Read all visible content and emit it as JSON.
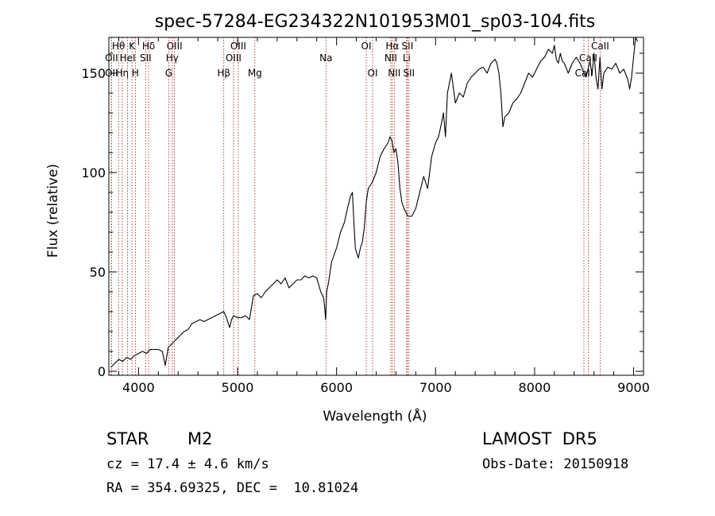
{
  "chart_data": {
    "type": "line",
    "title": "spec-57284-EG234322N101953M01_sp03-104.fits",
    "xlabel": "Wavelength (Å)",
    "ylabel": "Flux (relative)",
    "xlim": [
      3700,
      9100
    ],
    "ylim": [
      -2,
      168
    ],
    "xticks": [
      4000,
      5000,
      6000,
      7000,
      8000,
      9000
    ],
    "yticks": [
      0,
      50,
      100,
      150
    ],
    "grid": false,
    "line_color": "#000000",
    "marker_color": "#b01010",
    "series": [
      {
        "x": [
          3720,
          3760,
          3800,
          3840,
          3880,
          3920,
          3960,
          4000,
          4040,
          4080,
          4120,
          4160,
          4200,
          4240,
          4270,
          4300,
          4340,
          4380,
          4420,
          4460,
          4500,
          4540,
          4580,
          4620,
          4660,
          4700,
          4740,
          4780,
          4820,
          4860,
          4880,
          4900,
          4920,
          4940,
          4960,
          5000,
          5040,
          5080,
          5120,
          5160,
          5200,
          5240,
          5280,
          5320,
          5360,
          5400,
          5440,
          5480,
          5520,
          5560,
          5600,
          5640,
          5680,
          5720,
          5760,
          5800,
          5840,
          5870,
          5880,
          5890,
          5900,
          5920,
          5950,
          6000,
          6040,
          6080,
          6110,
          6140,
          6160,
          6180,
          6190,
          6200,
          6220,
          6240,
          6260,
          6280,
          6300,
          6320,
          6360,
          6400,
          6440,
          6480,
          6520,
          6540,
          6560,
          6580,
          6600,
          6620,
          6640,
          6660,
          6680,
          6700,
          6720,
          6760,
          6800,
          6840,
          6880,
          6920,
          6960,
          7000,
          7030,
          7060,
          7080,
          7100,
          7120,
          7140,
          7160,
          7200,
          7240,
          7280,
          7320,
          7360,
          7400,
          7440,
          7480,
          7520,
          7560,
          7600,
          7620,
          7640,
          7660,
          7680,
          7700,
          7740,
          7780,
          7820,
          7860,
          7900,
          7940,
          7980,
          8020,
          8060,
          8100,
          8140,
          8180,
          8200,
          8220,
          8240,
          8260,
          8280,
          8300,
          8340,
          8380,
          8420,
          8460,
          8500,
          8520,
          8540,
          8560,
          8580,
          8600,
          8620,
          8640,
          8660,
          8680,
          8700,
          8740,
          8780,
          8820,
          8860,
          8900,
          8940,
          8960,
          8980,
          9000,
          9020,
          9040
        ],
        "y": [
          2,
          4,
          6,
          5,
          7,
          6,
          8,
          9,
          10,
          9,
          11,
          11,
          11,
          10,
          3,
          12,
          14,
          16,
          18,
          20,
          21,
          24,
          25,
          26,
          25,
          26,
          27,
          28,
          29,
          30,
          28,
          25,
          22,
          26,
          28,
          27,
          27,
          28,
          26,
          38,
          39,
          37,
          40,
          42,
          44,
          46,
          44,
          47,
          42,
          44,
          46,
          46,
          48,
          47,
          48,
          47,
          40,
          37,
          32,
          26,
          40,
          45,
          55,
          62,
          70,
          75,
          82,
          88,
          90,
          70,
          62,
          60,
          57,
          62,
          65,
          72,
          85,
          92,
          95,
          100,
          108,
          112,
          115,
          118,
          116,
          110,
          112,
          105,
          92,
          85,
          82,
          80,
          78,
          78,
          82,
          90,
          98,
          92,
          108,
          115,
          118,
          125,
          130,
          118,
          140,
          145,
          150,
          135,
          140,
          138,
          145,
          148,
          150,
          152,
          153,
          150,
          155,
          157,
          155,
          150,
          140,
          123,
          128,
          130,
          135,
          137,
          140,
          145,
          150,
          148,
          152,
          156,
          158,
          162,
          160,
          164,
          157,
          155,
          160,
          156,
          155,
          150,
          155,
          158,
          155,
          150,
          148,
          152,
          156,
          149,
          160,
          148,
          142,
          158,
          142,
          150,
          153,
          152,
          155,
          150,
          152,
          147,
          142,
          148,
          158,
          168,
          166
        ]
      }
    ],
    "lines": [
      {
        "label": "Hθ",
        "x": 3798,
        "row": 1
      },
      {
        "label": "OII",
        "x": 3727,
        "row": 2
      },
      {
        "label": "OII",
        "x": 3727,
        "row": 3
      },
      {
        "label": "Hη",
        "x": 3835,
        "row": 3
      },
      {
        "label": "K",
        "x": 3934,
        "row": 1
      },
      {
        "label": "HeI",
        "x": 3889,
        "row": 2
      },
      {
        "label": "H",
        "x": 3968,
        "row": 3
      },
      {
        "label": "Hδ",
        "x": 4102,
        "row": 1
      },
      {
        "label": "SII",
        "x": 4072,
        "row": 2
      },
      {
        "label": "OIII",
        "x": 4363,
        "row": 1
      },
      {
        "label": "Hγ",
        "x": 4340,
        "row": 2
      },
      {
        "label": "G",
        "x": 4305,
        "row": 3
      },
      {
        "label": "OIII",
        "x": 5007,
        "row": 1
      },
      {
        "label": "OIII",
        "x": 4959,
        "row": 2
      },
      {
        "label": "Hβ",
        "x": 4861,
        "row": 3
      },
      {
        "label": "Mg",
        "x": 5175,
        "row": 3
      },
      {
        "label": "Na",
        "x": 5893,
        "row": 2
      },
      {
        "label": "OI",
        "x": 6300,
        "row": 1
      },
      {
        "label": "OI",
        "x": 6364,
        "row": 3
      },
      {
        "label": "Hα",
        "x": 6563,
        "row": 1
      },
      {
        "label": "NII",
        "x": 6548,
        "row": 2
      },
      {
        "label": "NII",
        "x": 6583,
        "row": 3
      },
      {
        "label": "SII",
        "x": 6716,
        "row": 1
      },
      {
        "label": "Li",
        "x": 6708,
        "row": 2
      },
      {
        "label": "SII",
        "x": 6731,
        "row": 3
      },
      {
        "label": "CaII",
        "x": 8662,
        "row": 1
      },
      {
        "label": "CaII",
        "x": 8542,
        "row": 2
      },
      {
        "label": "CaII",
        "x": 8498,
        "row": 3
      }
    ]
  },
  "footer": {
    "object_class": "STAR",
    "subclass": "M2",
    "survey": "LAMOST  DR5",
    "cz": "cz = 17.4 ± 4.6 km/s",
    "obs_date": "Obs-Date: 20150918",
    "coords": "RA = 354.69325, DEC =  10.81024"
  }
}
